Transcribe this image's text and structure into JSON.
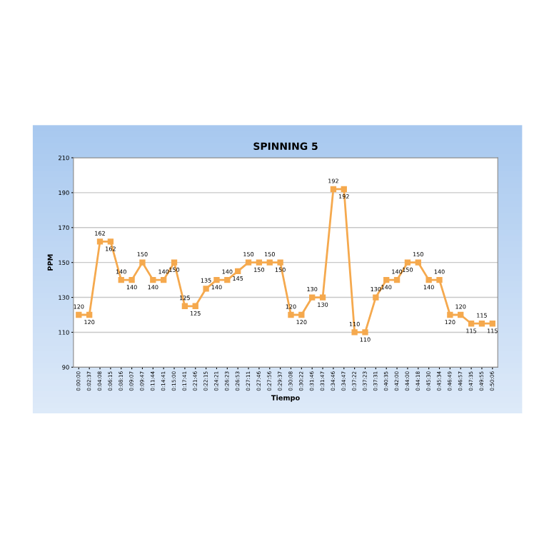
{
  "chart_data": {
    "type": "line",
    "title": "SPINNING 5",
    "xlabel": "Tiempo",
    "ylabel": "PPM",
    "categories": [
      "0:00:00",
      "0:02:37",
      "0:04:08",
      "0:06:15",
      "0:08:16",
      "0:09:07",
      "0:09:47",
      "0:11:44",
      "0:14:41",
      "0:15:00",
      "0:17:41",
      "0:21:46",
      "0:22:15",
      "0:24:21",
      "0:26:23",
      "0:26:53",
      "0:27:11",
      "0:27:46",
      "0:27:56",
      "0:29:37",
      "0:30:08",
      "0:30:22",
      "0:31:46",
      "0:31:47",
      "0:34:46",
      "0:34:47",
      "0:37:22",
      "0:37:23",
      "0:37:31",
      "0:40:35",
      "0:42:00",
      "0:44:00",
      "0:44:18",
      "0:45:30",
      "0:45:34",
      "0:46:49",
      "0:46:57",
      "0:47:35",
      "0:49:55",
      "0:50:06"
    ],
    "series": [
      {
        "color": "#f5a94e",
        "values": [
          120,
          120,
          162,
          162,
          140,
          140,
          150,
          140,
          140,
          150,
          125,
          125,
          135,
          140,
          140,
          145,
          150,
          150,
          150,
          150,
          120,
          120,
          130,
          130,
          192,
          192,
          110,
          110,
          130,
          140,
          140,
          150,
          150,
          140,
          140,
          120,
          120,
          115,
          115,
          115
        ]
      }
    ],
    "ylim": [
      90,
      210
    ],
    "yticks": [
      90,
      110,
      130,
      150,
      170,
      190,
      210
    ],
    "grid": "y",
    "marker": "square",
    "line_style": "solid",
    "data_labels": true,
    "legend": false
  }
}
